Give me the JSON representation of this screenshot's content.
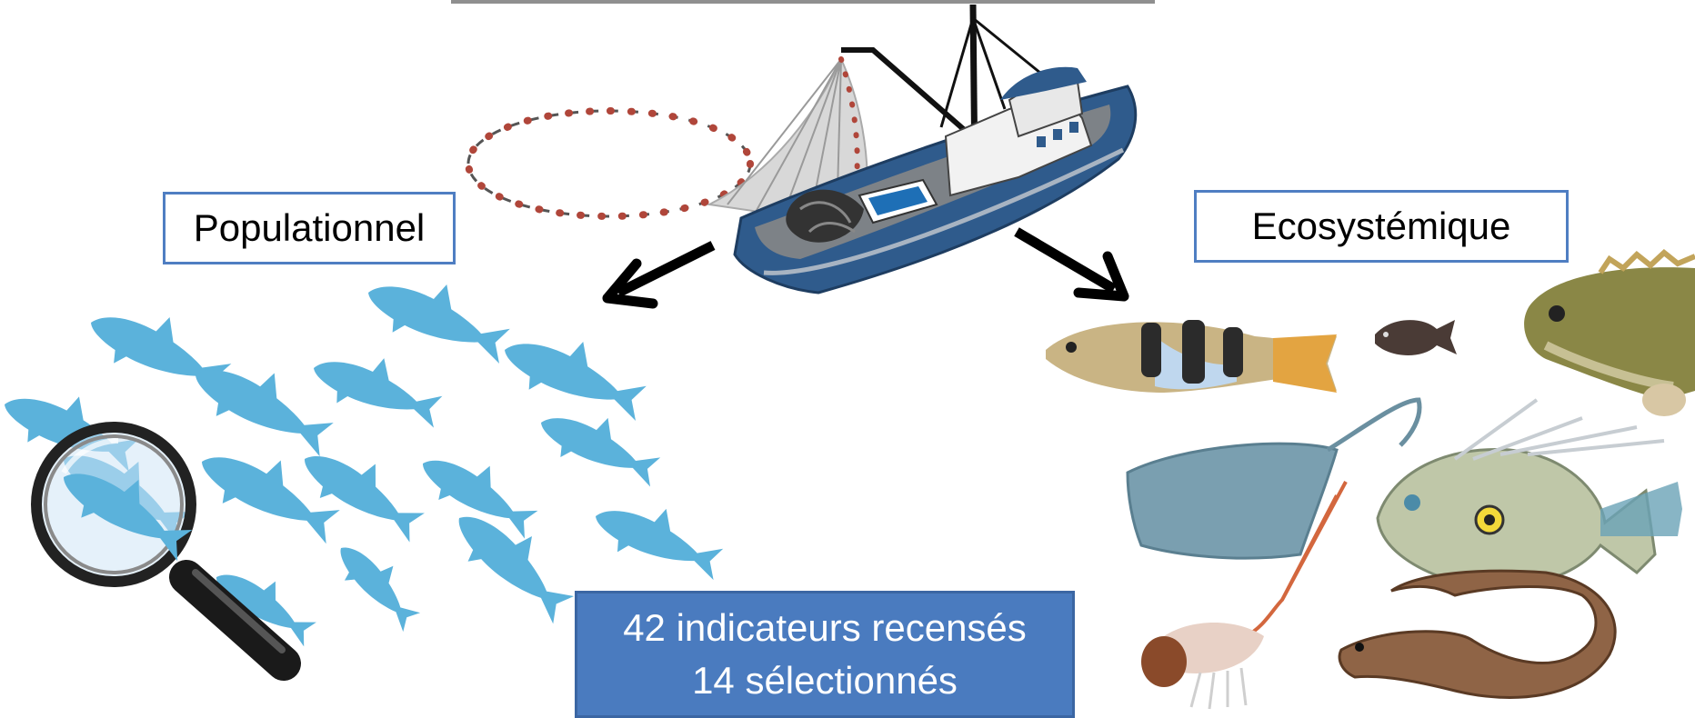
{
  "labels": {
    "left": "Populationnel",
    "right": "Ecosystémique"
  },
  "stats": {
    "line1": "42 indicateurs recensés",
    "line2": "14 sélectionnés"
  },
  "icons": [
    "fishing-boat-icon",
    "fish-school-icon",
    "magnifying-glass-icon",
    "arrow-icon",
    "wrasse-icon",
    "damselfish-icon",
    "grouper-icon",
    "stingray-icon",
    "john-dory-icon",
    "shrimp-icon",
    "moray-eel-icon"
  ],
  "colors": {
    "accent_border": "#4f7ec2",
    "stat_fill": "#4a7bbf",
    "fish_school": "#5bb2db",
    "boat_hull": "#2f5b8c"
  }
}
